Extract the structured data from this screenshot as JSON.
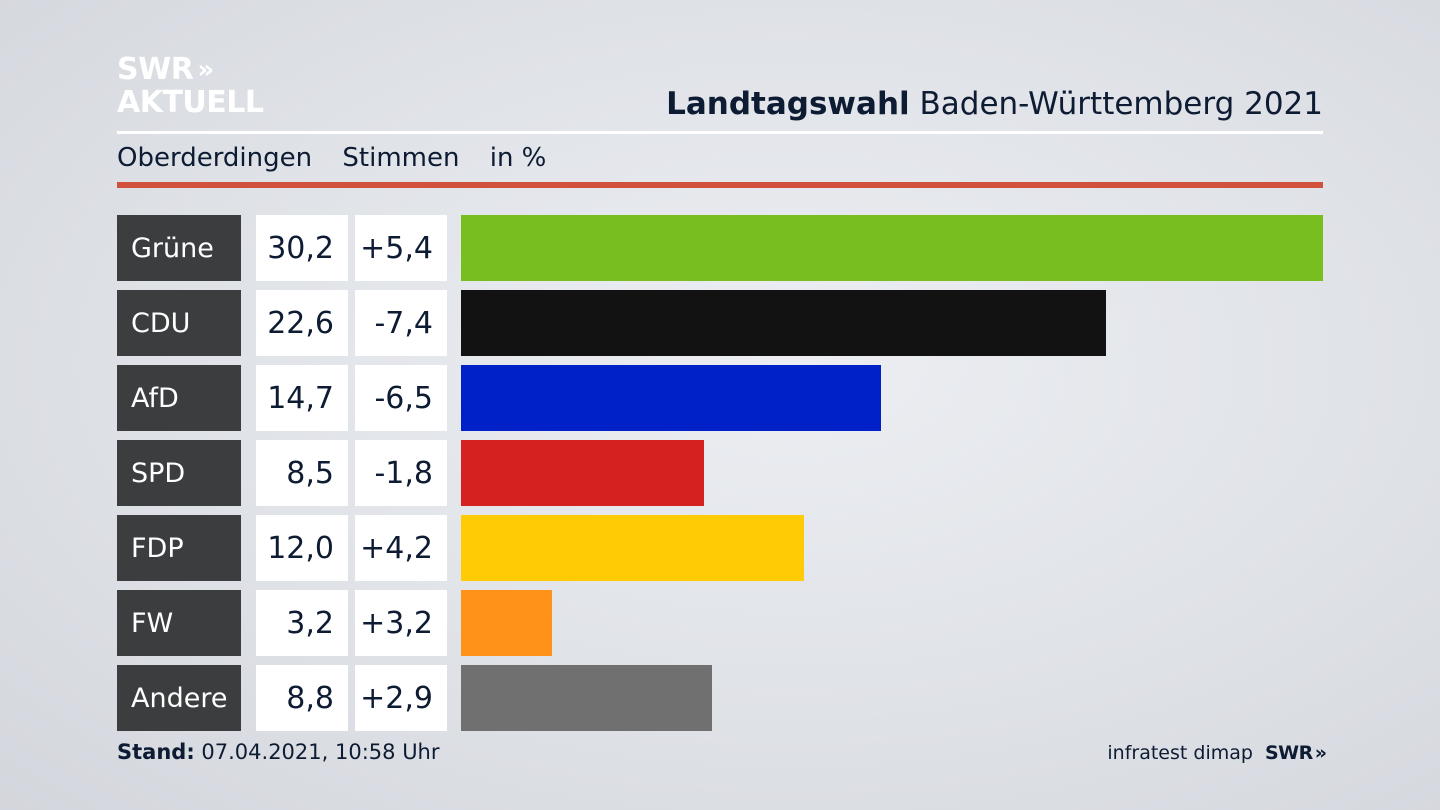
{
  "logo": {
    "line1": "SWR",
    "arrows": "»",
    "line2": "AKTUELL"
  },
  "header": {
    "title_bold": "Landtagswahl",
    "title_rest": "Baden-Württemberg 2021",
    "subtitle_place": "Oberderdingen",
    "subtitle_measure": "Stimmen",
    "subtitle_unit": "in %"
  },
  "chart_data": {
    "type": "bar",
    "orientation": "horizontal",
    "categories": [
      "Grüne",
      "CDU",
      "AfD",
      "SPD",
      "FDP",
      "FW",
      "Andere"
    ],
    "values": [
      30.2,
      22.6,
      14.7,
      8.5,
      12.0,
      3.2,
      8.8
    ],
    "value_labels": [
      "30,2",
      "22,6",
      "14,7",
      "8,5",
      "12,0",
      "3,2",
      "8,8"
    ],
    "diff_labels": [
      "+5,4",
      "-7,4",
      "-6,5",
      "-1,8",
      "+4,2",
      "+3,2",
      "+2,9"
    ],
    "diffs": [
      5.4,
      -7.4,
      -6.5,
      -1.8,
      4.2,
      3.2,
      2.9
    ],
    "colors": [
      "#78be1e",
      "#121212",
      "#0020c8",
      "#d5211f",
      "#ffcb05",
      "#ff9219",
      "#707071"
    ],
    "xlim": [
      0,
      30.2
    ],
    "grid": false,
    "legend": "none"
  },
  "footer": {
    "stand_label": "Stand:",
    "stand_value": "07.04.2021, 10:58 Uhr",
    "source": "infratest dimap",
    "brand": "SWR",
    "brand_arrows": "»"
  }
}
